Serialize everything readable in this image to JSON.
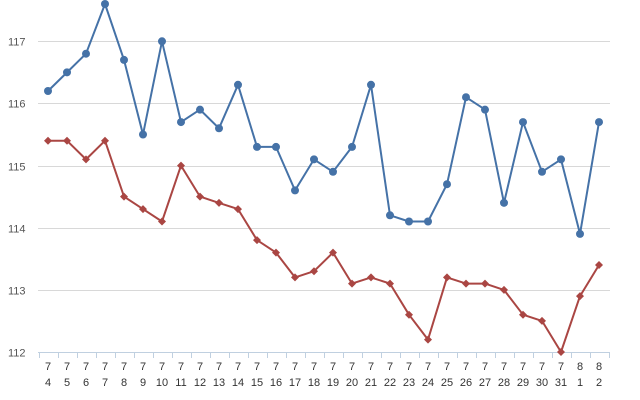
{
  "chart_data": {
    "type": "line",
    "title": "",
    "xlabel": "",
    "ylabel": "",
    "x": [
      {
        "month": "7",
        "day": "4"
      },
      {
        "month": "7",
        "day": "5"
      },
      {
        "month": "7",
        "day": "6"
      },
      {
        "month": "7",
        "day": "7"
      },
      {
        "month": "7",
        "day": "8"
      },
      {
        "month": "7",
        "day": "9"
      },
      {
        "month": "7",
        "day": "10"
      },
      {
        "month": "7",
        "day": "11"
      },
      {
        "month": "7",
        "day": "12"
      },
      {
        "month": "7",
        "day": "13"
      },
      {
        "month": "7",
        "day": "14"
      },
      {
        "month": "7",
        "day": "15"
      },
      {
        "month": "7",
        "day": "16"
      },
      {
        "month": "7",
        "day": "17"
      },
      {
        "month": "7",
        "day": "18"
      },
      {
        "month": "7",
        "day": "19"
      },
      {
        "month": "7",
        "day": "20"
      },
      {
        "month": "7",
        "day": "21"
      },
      {
        "month": "7",
        "day": "22"
      },
      {
        "month": "7",
        "day": "23"
      },
      {
        "month": "7",
        "day": "24"
      },
      {
        "month": "7",
        "day": "25"
      },
      {
        "month": "7",
        "day": "26"
      },
      {
        "month": "7",
        "day": "27"
      },
      {
        "month": "7",
        "day": "28"
      },
      {
        "month": "7",
        "day": "29"
      },
      {
        "month": "7",
        "day": "30"
      },
      {
        "month": "7",
        "day": "31"
      },
      {
        "month": "8",
        "day": "1"
      },
      {
        "month": "8",
        "day": "2"
      }
    ],
    "ylim": [
      112,
      117.6
    ],
    "yticks": [
      "112",
      "113",
      "114",
      "115",
      "116",
      "117"
    ],
    "grid": true,
    "series": [
      {
        "color": "#4572a7",
        "marker": "circle",
        "values": [
          116.2,
          116.5,
          116.8,
          117.6,
          116.7,
          115.5,
          117.0,
          115.7,
          115.9,
          115.6,
          116.3,
          115.3,
          115.3,
          114.6,
          115.1,
          114.9,
          115.3,
          116.3,
          114.2,
          114.1,
          114.1,
          114.7,
          116.1,
          115.9,
          114.4,
          115.7,
          114.9,
          115.1,
          113.9,
          115.7
        ]
      },
      {
        "color": "#aa4643",
        "marker": "diamond",
        "values": [
          115.4,
          115.4,
          115.1,
          115.4,
          114.5,
          114.3,
          114.1,
          115.0,
          114.5,
          114.4,
          114.3,
          113.8,
          113.6,
          113.2,
          113.3,
          113.6,
          113.1,
          113.2,
          113.1,
          112.6,
          112.2,
          113.2,
          113.1,
          113.1,
          113.0,
          112.6,
          112.5,
          112.0,
          112.9,
          113.4
        ]
      }
    ]
  }
}
